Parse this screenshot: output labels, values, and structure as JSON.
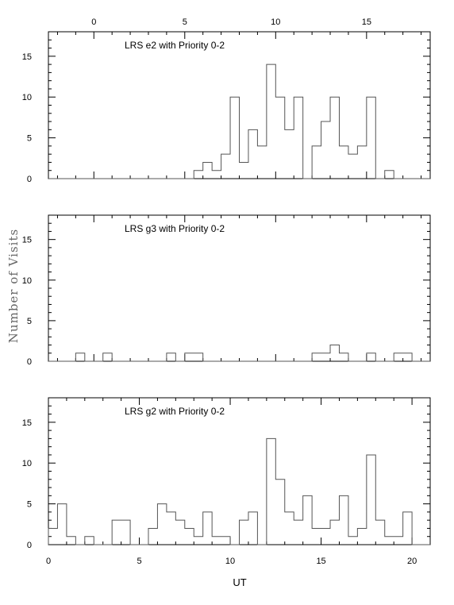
{
  "chart_data": {
    "type": "histogram",
    "ylabel": "Number of Visits",
    "xlabel": "UT",
    "ylim": [
      0,
      18
    ],
    "bin_width": 0.5,
    "bottom_xaxis": {
      "xlim": [
        0,
        21
      ],
      "ticks": [
        0,
        5,
        10,
        15,
        20
      ],
      "tick_labels": [
        "0",
        "5",
        "10",
        "15",
        "20"
      ]
    },
    "top_xaxis": {
      "xlim": [
        -2.5,
        18.5
      ],
      "ticks": [
        0,
        5,
        10,
        15
      ],
      "tick_labels": [
        "0",
        "5",
        "10",
        "15"
      ]
    },
    "y_ticks": [
      0,
      5,
      10,
      15
    ],
    "y_tick_labels": [
      "0",
      "5",
      "10",
      "15"
    ],
    "panels": [
      {
        "title": "LRS e2 with Priority 0-2",
        "x_axis": "top",
        "bins_start": [
          5.5,
          6.0,
          6.5,
          7.0,
          7.5,
          8.0,
          8.5,
          9.0,
          9.5,
          10.0,
          10.5,
          11.0,
          11.5,
          12.0,
          12.5,
          13.0,
          13.5,
          14.0,
          14.5,
          15.0,
          15.5,
          16.0,
          16.5,
          17.0
        ],
        "counts": [
          1,
          2,
          1,
          3,
          10,
          2,
          6,
          4,
          14,
          10,
          6,
          10,
          0,
          4,
          7,
          10,
          4,
          3,
          4,
          10,
          0,
          1,
          0,
          0
        ]
      },
      {
        "title": "LRS g3 with Priority 0-2",
        "x_axis": "top",
        "bins_start": [
          -1.0,
          -0.5,
          0.0,
          0.5,
          1.0,
          1.5,
          2.0,
          2.5,
          3.0,
          3.5,
          4.0,
          4.5,
          5.0,
          5.5,
          6.0,
          6.5,
          7.0,
          7.5,
          8.0,
          8.5,
          9.0,
          9.5,
          10.0,
          10.5,
          11.0,
          11.5,
          12.0,
          12.5,
          13.0,
          13.5,
          14.0,
          14.5,
          15.0,
          15.5,
          16.0,
          16.5,
          17.0
        ],
        "counts": [
          1,
          0,
          0,
          1,
          0,
          0,
          0,
          0,
          0,
          0,
          1,
          0,
          1,
          1,
          0,
          0,
          0,
          0,
          0,
          0,
          0,
          0,
          0,
          0,
          0,
          0,
          1,
          1,
          2,
          1,
          0,
          0,
          1,
          0,
          0,
          1,
          1
        ]
      },
      {
        "title": "LRS g2 with Priority 0-2",
        "x_axis": "bottom",
        "bins_start": [
          0.0,
          0.5,
          1.0,
          1.5,
          2.0,
          2.5,
          3.0,
          3.5,
          4.0,
          4.5,
          5.0,
          5.5,
          6.0,
          6.5,
          7.0,
          7.5,
          8.0,
          8.5,
          9.0,
          9.5,
          10.0,
          10.5,
          11.0,
          11.5,
          12.0,
          12.5,
          13.0,
          13.5,
          14.0,
          14.5,
          15.0,
          15.5,
          16.0,
          16.5,
          17.0,
          17.5,
          18.0,
          18.5,
          19.0,
          19.5,
          20.0
        ],
        "counts": [
          2,
          5,
          1,
          0,
          1,
          0,
          0,
          3,
          3,
          0,
          0,
          2,
          5,
          4,
          3,
          2,
          1,
          4,
          1,
          1,
          0,
          3,
          4,
          0,
          13,
          8,
          4,
          3,
          6,
          2,
          2,
          3,
          6,
          1,
          2,
          11,
          3,
          1,
          1,
          4,
          0
        ]
      }
    ]
  }
}
